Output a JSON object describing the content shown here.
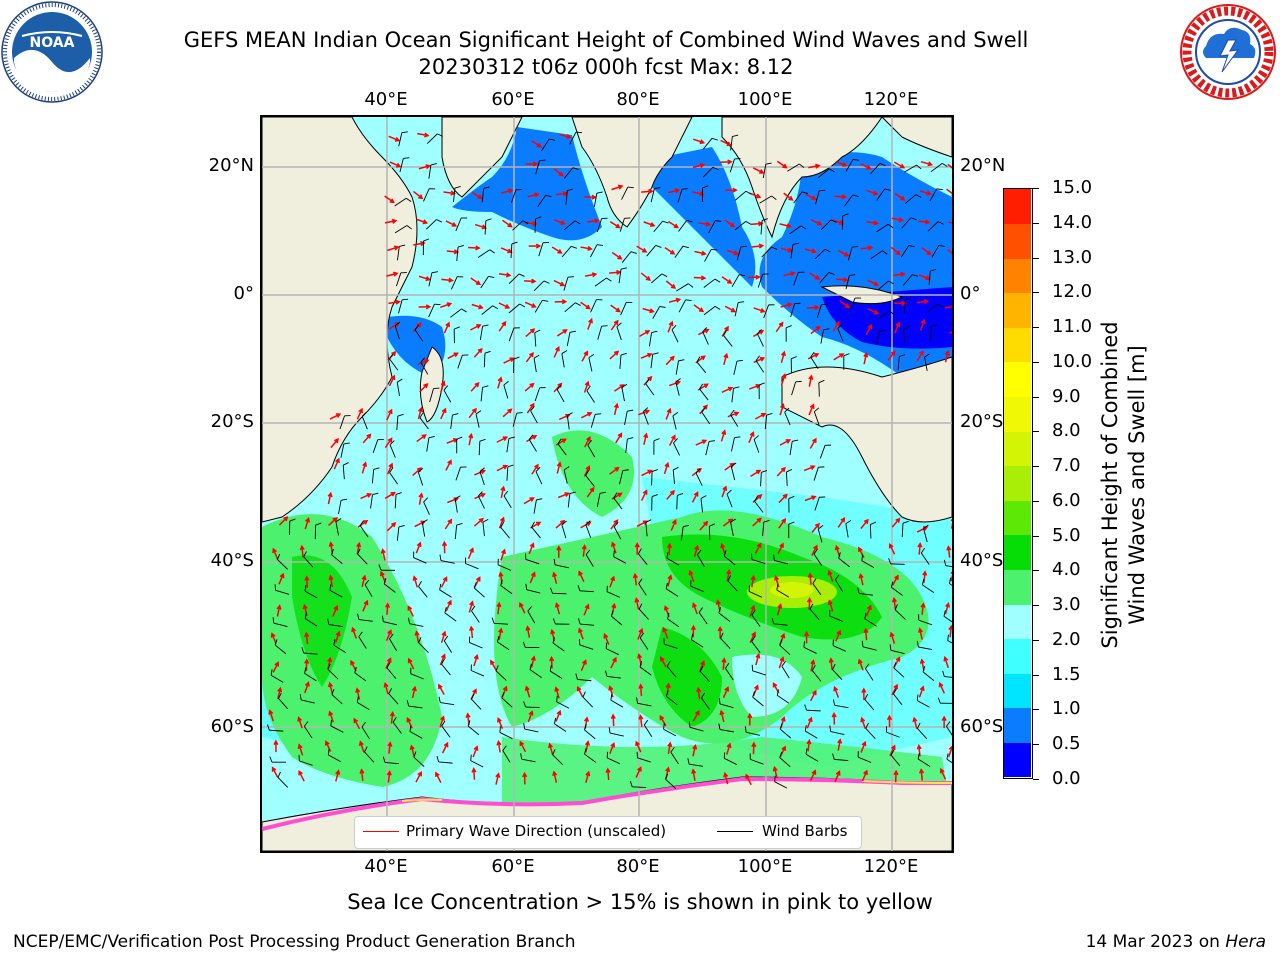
{
  "header": {
    "title_line1": "GEFS MEAN Indian Ocean Significant Height of Combined Wind Waves and Swell",
    "title_line2": "20230312 t06z 000h fcst   Max: 8.12"
  },
  "logos": {
    "left": {
      "name": "NOAA",
      "ring_text": "NATIONAL OCEANIC AND ATMOSPHERIC ADMINISTRATION · U.S. DEPARTMENT OF COMMERCE"
    },
    "right": {
      "name": "NATIONAL WEATHER SERVICE"
    }
  },
  "map": {
    "lon_ticks": [
      "40°E",
      "60°E",
      "80°E",
      "100°E",
      "120°E"
    ],
    "lat_ticks_left": [
      "20°N",
      "0°",
      "20°S",
      "40°S",
      "60°S"
    ],
    "lat_ticks_right": [
      "20°N",
      "0°",
      "20°S",
      "40°S",
      "60°S"
    ],
    "colors": {
      "land": "#f0eedd",
      "grid": "#b4b4b4",
      "wave_arrow": "#ff0000",
      "wind_barb": "#000000"
    }
  },
  "colorbar": {
    "label_line1": "Significant Height of Combined",
    "label_line2": "Wind Waves and Swell [m]",
    "ticks": [
      "0.0",
      "0.5",
      "1.0",
      "1.5",
      "2.0",
      "3.0",
      "4.0",
      "5.0",
      "6.0",
      "7.0",
      "8.0",
      "9.0",
      "10.0",
      "11.0",
      "12.0",
      "13.0",
      "14.0",
      "15.0"
    ],
    "colors": [
      "#0000ff",
      "#0a7cff",
      "#00e5ff",
      "#40ffff",
      "#a0ffff",
      "#4cf26e",
      "#06dc06",
      "#5ee806",
      "#a8ee06",
      "#d4f406",
      "#f0f806",
      "#ffff00",
      "#ffdc00",
      "#ffb400",
      "#ff8200",
      "#ff5000",
      "#ff1e00"
    ]
  },
  "legend": {
    "wave_label": "Primary Wave Direction (unscaled)",
    "wind_label": "Wind Barbs"
  },
  "footer": {
    "note": "Sea Ice Concentration > 15% is shown in pink to yellow",
    "credit": "NCEP/EMC/Verification Post Processing Product Generation Branch",
    "date": "14 Mar 2023 on",
    "host": "Hera"
  }
}
